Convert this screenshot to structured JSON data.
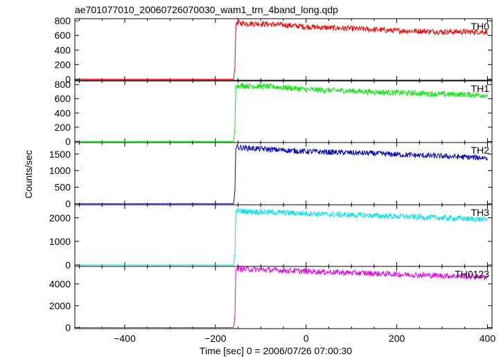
{
  "chart_data": {
    "type": "line",
    "title": "ae701077010_20060726070030_wam1_trn_4band_long.qdp",
    "xlabel": "Time [sec] 0 = 2006/07/26 07:00:30",
    "ylabel": "Counts/sec",
    "xlim": [
      -510,
      410
    ],
    "xticks": [
      -400,
      -200,
      0,
      200,
      400
    ],
    "grid": false,
    "series": [
      {
        "name": "TH0",
        "color": "#ff0000",
        "ylim": [
          -15,
          830
        ],
        "yticks": [
          0,
          200,
          400,
          600,
          800
        ],
        "x": [
          -500,
          -160,
          -157,
          -155,
          -153,
          -150,
          -100,
          -50,
          0,
          50,
          100,
          150,
          200,
          250,
          300,
          350,
          400
        ],
        "values": [
          0,
          0,
          150,
          750,
          775,
          770,
          760,
          745,
          720,
          705,
          695,
          680,
          665,
          660,
          650,
          650,
          650
        ]
      },
      {
        "name": "TH1",
        "color": "#00ee00",
        "ylim": [
          -15,
          850
        ],
        "yticks": [
          0,
          200,
          400,
          600,
          800
        ],
        "x": [
          -500,
          -160,
          -157,
          -155,
          -153,
          -150,
          -100,
          -50,
          0,
          50,
          100,
          150,
          200,
          250,
          300,
          350,
          400
        ],
        "values": [
          0,
          0,
          180,
          780,
          790,
          785,
          775,
          760,
          730,
          720,
          710,
          695,
          685,
          675,
          665,
          660,
          650
        ]
      },
      {
        "name": "TH2",
        "color": "#0000cc",
        "ylim": [
          -30,
          1850
        ],
        "yticks": [
          0,
          500,
          1000,
          1500
        ],
        "x": [
          -500,
          -160,
          -157,
          -155,
          -153,
          -150,
          -100,
          -50,
          0,
          50,
          100,
          150,
          200,
          250,
          300,
          350,
          400
        ],
        "values": [
          0,
          0,
          400,
          1650,
          1720,
          1700,
          1660,
          1620,
          1580,
          1560,
          1540,
          1520,
          1490,
          1460,
          1440,
          1410,
          1390
        ]
      },
      {
        "name": "TH3",
        "color": "#00e5ee",
        "ylim": [
          -60,
          2550
        ],
        "yticks": [
          0,
          1000,
          2000
        ],
        "x": [
          -500,
          -160,
          -157,
          -155,
          -153,
          -150,
          -100,
          -50,
          0,
          50,
          100,
          150,
          200,
          250,
          300,
          350,
          400
        ],
        "values": [
          0,
          0,
          500,
          2250,
          2300,
          2290,
          2250,
          2220,
          2180,
          2150,
          2120,
          2090,
          2060,
          2030,
          2000,
          1960,
          1930
        ]
      },
      {
        "name": "TH0123",
        "color": "#ee00ee",
        "ylim": [
          -100,
          5600
        ],
        "yticks": [
          0,
          2000,
          4000
        ],
        "x": [
          -500,
          -160,
          -157,
          -155,
          -153,
          -150,
          -100,
          -50,
          0,
          50,
          100,
          150,
          200,
          250,
          300,
          350,
          400
        ],
        "values": [
          0,
          0,
          1000,
          5300,
          5400,
          5380,
          5300,
          5230,
          5150,
          5080,
          5010,
          4950,
          4880,
          4810,
          4750,
          4680,
          4620
        ]
      }
    ]
  }
}
